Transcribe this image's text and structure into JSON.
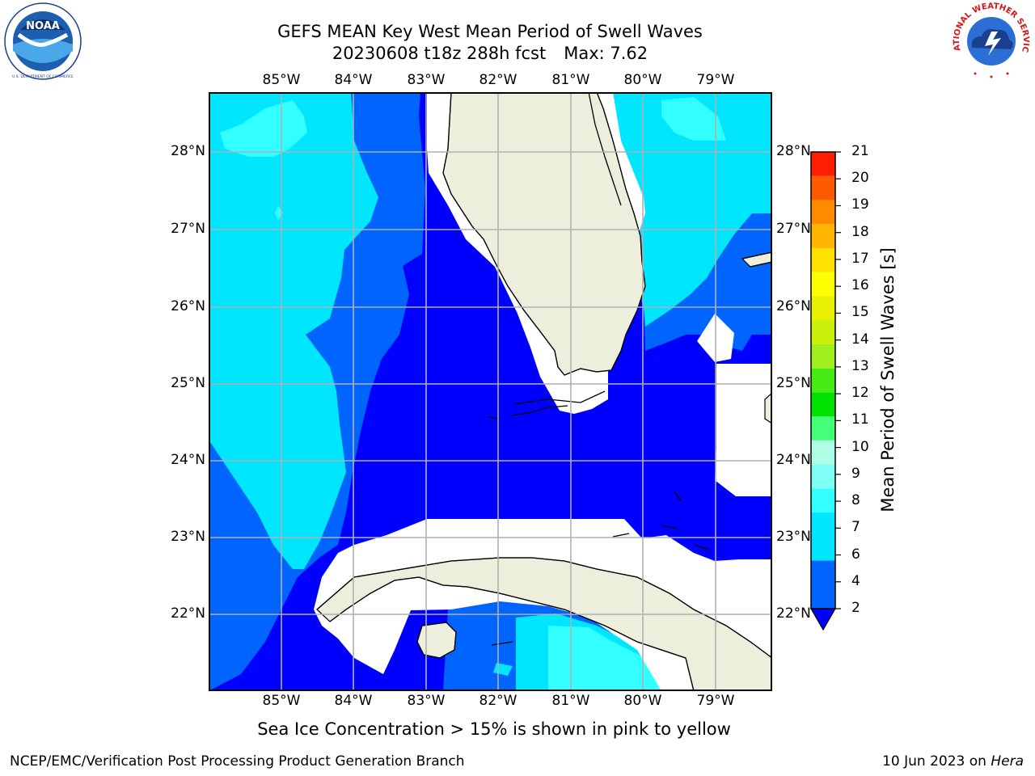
{
  "header": {
    "title_line1": "GEFS MEAN Key West Mean Period of Swell Waves",
    "title_run": "20230608 t18z 288h fcst",
    "title_max": "Max: 7.62"
  },
  "logos": {
    "left": {
      "name": "noaa-logo",
      "text": "NOAA"
    },
    "right": {
      "name": "nws-logo",
      "text": "NATIONAL WEATHER SERVICE"
    }
  },
  "map": {
    "region": "Key West / South Florida / Cuba",
    "lon_labels": [
      "85°W",
      "84°W",
      "83°W",
      "82°W",
      "81°W",
      "80°W",
      "79°W"
    ],
    "lat_labels": [
      "28°N",
      "27°N",
      "26°N",
      "25°N",
      "24°N",
      "23°N",
      "22°N"
    ],
    "colors": {
      "land": "#eeeedc",
      "mask": "#ffffff",
      "gridline": "#b0b0b0",
      "coastline": "#000000"
    }
  },
  "colorbar": {
    "title": "Mean Period of Swell Waves [s]",
    "tick_labels": [
      "2",
      "4",
      "6",
      "7",
      "8",
      "9",
      "10",
      "11",
      "12",
      "13",
      "14",
      "15",
      "16",
      "17",
      "18",
      "19",
      "20",
      "21"
    ],
    "bins": [
      {
        "from": 2,
        "to": 4,
        "color": "#0064ff"
      },
      {
        "from": 4,
        "to": 6,
        "color": "#00e6ff"
      },
      {
        "from": 6,
        "to": 7,
        "color": "#32ffff"
      },
      {
        "from": 7,
        "to": 8,
        "color": "#7dfff5"
      },
      {
        "from": 8,
        "to": 9,
        "color": "#afffe6"
      },
      {
        "from": 9,
        "to": 10,
        "color": "#46ff78"
      },
      {
        "from": 10,
        "to": 11,
        "color": "#00e100"
      },
      {
        "from": 11,
        "to": 12,
        "color": "#46eb14"
      },
      {
        "from": 12,
        "to": 13,
        "color": "#a0f01e"
      },
      {
        "from": 13,
        "to": 14,
        "color": "#c8f00a"
      },
      {
        "from": 14,
        "to": 15,
        "color": "#e6f000"
      },
      {
        "from": 15,
        "to": 16,
        "color": "#ffff00"
      },
      {
        "from": 16,
        "to": 17,
        "color": "#ffe100"
      },
      {
        "from": 17,
        "to": 18,
        "color": "#ffb400"
      },
      {
        "from": 18,
        "to": 19,
        "color": "#ff8c00"
      },
      {
        "from": 19,
        "to": 20,
        "color": "#ff5a00"
      },
      {
        "from": 20,
        "to": 21,
        "color": "#ff1e00"
      }
    ],
    "under_color": "#0000ff"
  },
  "field_colors": {
    "period_lt2": "#0000ff",
    "period_2_4": "#0064ff",
    "period_4_6": "#00e6ff",
    "period_6_7": "#32ffff"
  },
  "footer": {
    "note": "Sea Ice Concentration > 15% is shown in pink to yellow",
    "credit": "NCEP/EMC/Verification Post Processing Product Generation Branch",
    "date_prefix": "10 Jun 2023 on",
    "date_host": "Hera"
  }
}
